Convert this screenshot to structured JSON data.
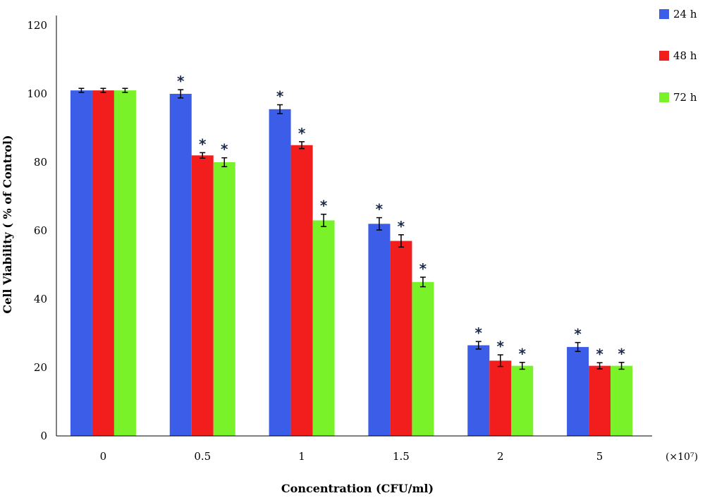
{
  "chart_data": {
    "type": "bar",
    "title": "",
    "xlabel": "Concentration (CFU/ml)",
    "ylabel": "Cell Viability ( % of Control)",
    "x_unit_note": "(×10⁷)",
    "categories": [
      "0",
      "0.5",
      "1",
      "1.5",
      "2",
      "5"
    ],
    "ylim": [
      0,
      120
    ],
    "yticks": [
      0,
      20,
      40,
      60,
      80,
      100,
      120
    ],
    "grid": false,
    "legend_position": "top-right",
    "series": [
      {
        "name": "24 h",
        "color": "#3b5de8",
        "values": [
          101,
          100,
          95.5,
          62,
          26.5,
          26
        ],
        "errors": [
          0.6,
          1.2,
          1.3,
          1.8,
          1.1,
          1.3
        ],
        "significant": [
          false,
          true,
          true,
          true,
          true,
          true
        ]
      },
      {
        "name": "48 h",
        "color": "#f21d1d",
        "values": [
          101,
          82,
          85,
          57,
          22,
          20.5
        ],
        "errors": [
          0.6,
          0.8,
          1.0,
          1.8,
          1.7,
          0.9
        ],
        "significant": [
          false,
          true,
          true,
          true,
          true,
          true
        ]
      },
      {
        "name": "72 h",
        "color": "#79f22a",
        "values": [
          101,
          80,
          63,
          45,
          20.5,
          20.5
        ],
        "errors": [
          0.6,
          1.3,
          1.8,
          1.4,
          1.0,
          1.0
        ],
        "significant": [
          false,
          true,
          true,
          true,
          true,
          true
        ]
      }
    ],
    "significance_marker": "*"
  }
}
